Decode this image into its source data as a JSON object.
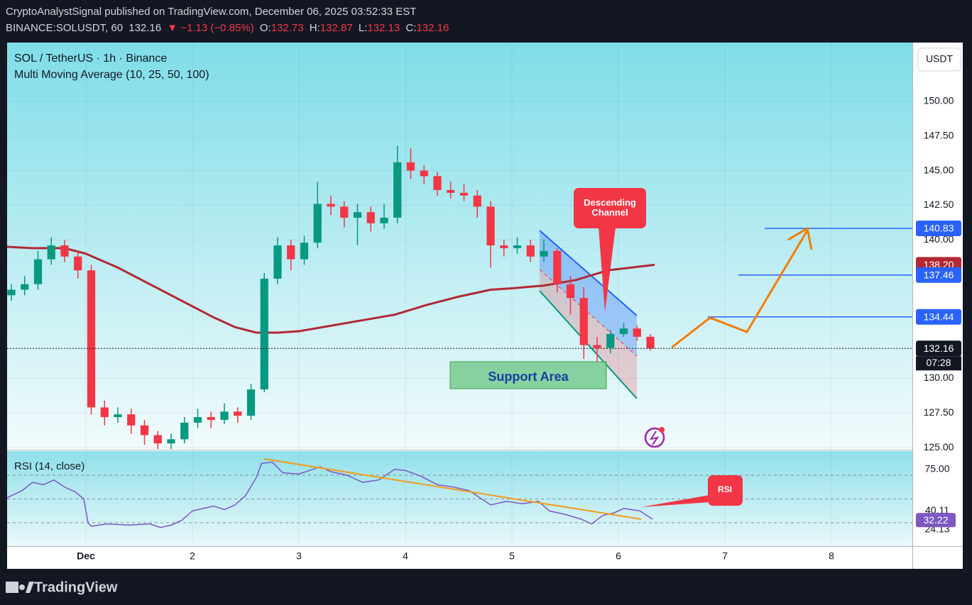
{
  "header": {
    "line1": "CryptoAnalystSignal published on TradingView.com, December 06, 2025 03:52:33 EST",
    "symbol": "BINANCE:SOLUSDT, 60",
    "price": "132.16",
    "change": "▼ −1.13 (−0.85%)",
    "ohlc": [
      {
        "key": "O:",
        "value": "132.73"
      },
      {
        "key": "H:",
        "value": "132.87"
      },
      {
        "key": "L:",
        "value": "132.13"
      },
      {
        "key": "C:",
        "value": "132.16"
      }
    ]
  },
  "legend": {
    "title": "SOL / TetherUS · 1h · Binance",
    "indicator": "Multi Moving Average (10, 25, 50, 100)"
  },
  "currency_button": "USDT",
  "chart_data": [
    {
      "type": "candlestick",
      "x": [
        0.3,
        0.425,
        0.55,
        0.675,
        0.8,
        0.925,
        1.05,
        1.175,
        1.3,
        1.425,
        1.55,
        1.675,
        1.8,
        1.925,
        2.05,
        2.175,
        2.3,
        2.425,
        2.55,
        2.675,
        2.8,
        2.925,
        3.05,
        3.175,
        3.3,
        3.425,
        3.55,
        3.675,
        3.8,
        3.925,
        4.05,
        4.175,
        4.3,
        4.425,
        4.55,
        4.675,
        4.8,
        4.925,
        5.05,
        5.175,
        5.3,
        5.425,
        5.55,
        5.675,
        5.8,
        5.925,
        6.05,
        6.175,
        6.3
      ],
      "open": [
        136.0,
        136.4,
        136.8,
        138.6,
        139.6,
        138.8,
        137.8,
        127.9,
        127.2,
        127.4,
        126.6,
        125.9,
        125.3,
        125.6,
        126.8,
        127.2,
        127.0,
        127.6,
        127.3,
        129.2,
        137.2,
        139.6,
        138.6,
        139.8,
        142.6,
        142.4,
        141.6,
        142.0,
        141.2,
        141.6,
        145.6,
        145.0,
        144.6,
        143.6,
        143.4,
        143.2,
        142.4,
        139.6,
        139.4,
        139.6,
        138.8,
        139.2,
        136.8,
        135.8,
        132.4,
        132.2,
        133.2,
        133.6,
        133.0
      ],
      "high": [
        136.8,
        137.4,
        139.2,
        140.2,
        140.0,
        139.2,
        138.2,
        128.4,
        127.9,
        127.8,
        127.0,
        126.2,
        126.0,
        127.2,
        127.8,
        127.6,
        128.2,
        127.9,
        129.6,
        137.6,
        140.2,
        140.0,
        140.3,
        144.2,
        143.2,
        142.8,
        142.6,
        142.4,
        142.6,
        146.8,
        146.6,
        145.4,
        144.9,
        144.2,
        144.0,
        143.6,
        142.8,
        140.0,
        140.2,
        140.0,
        140.0,
        139.4,
        137.4,
        136.6,
        133.0,
        133.5,
        134.0,
        133.8,
        133.2
      ],
      "low": [
        135.6,
        136.0,
        136.4,
        138.2,
        138.4,
        137.2,
        127.4,
        126.6,
        126.8,
        126.0,
        125.2,
        124.9,
        124.9,
        125.3,
        126.4,
        126.4,
        126.7,
        126.8,
        127.0,
        129.0,
        136.8,
        137.8,
        138.2,
        139.4,
        141.8,
        140.9,
        139.6,
        140.6,
        140.8,
        141.2,
        144.4,
        144.0,
        143.2,
        143.0,
        142.8,
        141.6,
        138.0,
        138.8,
        139.0,
        138.4,
        138.4,
        136.2,
        134.6,
        131.4,
        131.2,
        131.8,
        133.0,
        132.7,
        132.0
      ],
      "close": [
        136.4,
        136.8,
        138.6,
        139.6,
        138.8,
        137.8,
        127.9,
        127.2,
        127.4,
        126.6,
        125.9,
        125.3,
        125.6,
        126.8,
        127.2,
        127.0,
        127.6,
        127.3,
        129.2,
        137.2,
        139.6,
        138.6,
        139.8,
        142.6,
        142.4,
        141.6,
        142.0,
        141.2,
        141.6,
        145.6,
        145.0,
        144.6,
        143.6,
        143.4,
        143.2,
        142.4,
        139.6,
        139.4,
        139.6,
        138.8,
        139.2,
        136.8,
        135.8,
        132.4,
        132.2,
        133.2,
        133.6,
        133.0,
        132.16
      ],
      "up_color": "#089981",
      "down_color": "#f23645",
      "xlim": [
        0.26,
        8.76
      ],
      "xticks": [
        {
          "value": 1,
          "label": "Dec"
        },
        2,
        3,
        4,
        5,
        6,
        7,
        8
      ],
      "ylim": [
        124.9,
        154.25
      ],
      "yticks": [
        {
          "value": 150,
          "label": "150.00"
        },
        {
          "value": 147.5,
          "label": "147.50"
        },
        {
          "value": 145,
          "label": "145.00"
        },
        {
          "value": 142.5,
          "label": "142.50"
        },
        {
          "value": 140,
          "label": "140.00"
        },
        {
          "value": 130,
          "label": "130.00"
        },
        {
          "value": 127.5,
          "label": "127.50"
        },
        {
          "value": 125,
          "label": "125.00"
        }
      ],
      "grid": true,
      "moving_average": {
        "color": "#b22833",
        "x": [
          0.26,
          0.5,
          0.8,
          1.0,
          1.3,
          1.6,
          1.9,
          2.2,
          2.4,
          2.6,
          2.8,
          3.0,
          3.3,
          3.6,
          3.9,
          4.2,
          4.5,
          4.8,
          5.0,
          5.3,
          5.6,
          5.9,
          6.34
        ],
        "values": [
          139.5,
          139.4,
          139.4,
          139.0,
          138.0,
          136.8,
          135.6,
          134.4,
          133.7,
          133.3,
          133.3,
          133.4,
          133.8,
          134.2,
          134.6,
          135.3,
          135.9,
          136.4,
          136.5,
          136.7,
          137.1,
          137.8,
          138.2
        ]
      },
      "price_labels": [
        {
          "value": 140.83,
          "color": "#2962ff",
          "line": "solid"
        },
        {
          "value": 138.2,
          "label": "138.20",
          "color": "#b22833"
        },
        {
          "value": 137.46,
          "color": "#2962ff",
          "line": "solid"
        },
        {
          "value": 134.44,
          "color": "#2962ff",
          "line": "solid"
        },
        {
          "value": 132.16,
          "color": "#131722",
          "line": "dotted"
        }
      ],
      "countdown": "07:28",
      "annotations": {
        "channel": "Descending Channel",
        "support": "Support Area"
      }
    },
    {
      "type": "line",
      "title": "RSI (14, close)",
      "color": "#7e57c2",
      "x": [
        0.26,
        0.4,
        0.5,
        0.6,
        0.7,
        0.8,
        0.9,
        0.98,
        1.02,
        1.05,
        1.2,
        1.4,
        1.6,
        1.7,
        1.8,
        1.9,
        2.0,
        2.1,
        2.2,
        2.3,
        2.4,
        2.5,
        2.6,
        2.65,
        2.75,
        2.85,
        3.0,
        3.1,
        3.2,
        3.3,
        3.45,
        3.6,
        3.75,
        3.9,
        4.0,
        4.15,
        4.3,
        4.45,
        4.6,
        4.8,
        4.95,
        5.1,
        5.25,
        5.35,
        5.5,
        5.65,
        5.75,
        5.85,
        5.95,
        6.05,
        6.2,
        6.32
      ],
      "values": [
        51,
        57,
        64,
        62,
        66,
        60,
        56,
        50,
        30,
        27,
        29,
        28,
        29,
        26,
        28,
        32,
        40,
        42,
        44,
        41,
        45,
        53,
        68,
        80,
        81,
        72,
        71,
        74,
        77,
        73,
        70,
        64,
        66,
        75,
        74,
        69,
        62,
        60,
        57,
        45,
        48,
        46,
        48,
        40,
        37,
        33,
        29,
        36,
        38,
        42,
        40,
        33
      ],
      "xlim": [
        0.26,
        8.76
      ],
      "ylim": [
        10.3,
        90.3
      ],
      "yticks": [
        {
          "value": 75,
          "label": "75.00"
        },
        40.11,
        24.13
      ],
      "levels": [
        70,
        50,
        30
      ],
      "price_labels": [
        {
          "value": 32.22,
          "color": "#7e57c2"
        }
      ],
      "annotation": "RSI"
    }
  ],
  "footer": {
    "brand": "TradingView"
  }
}
